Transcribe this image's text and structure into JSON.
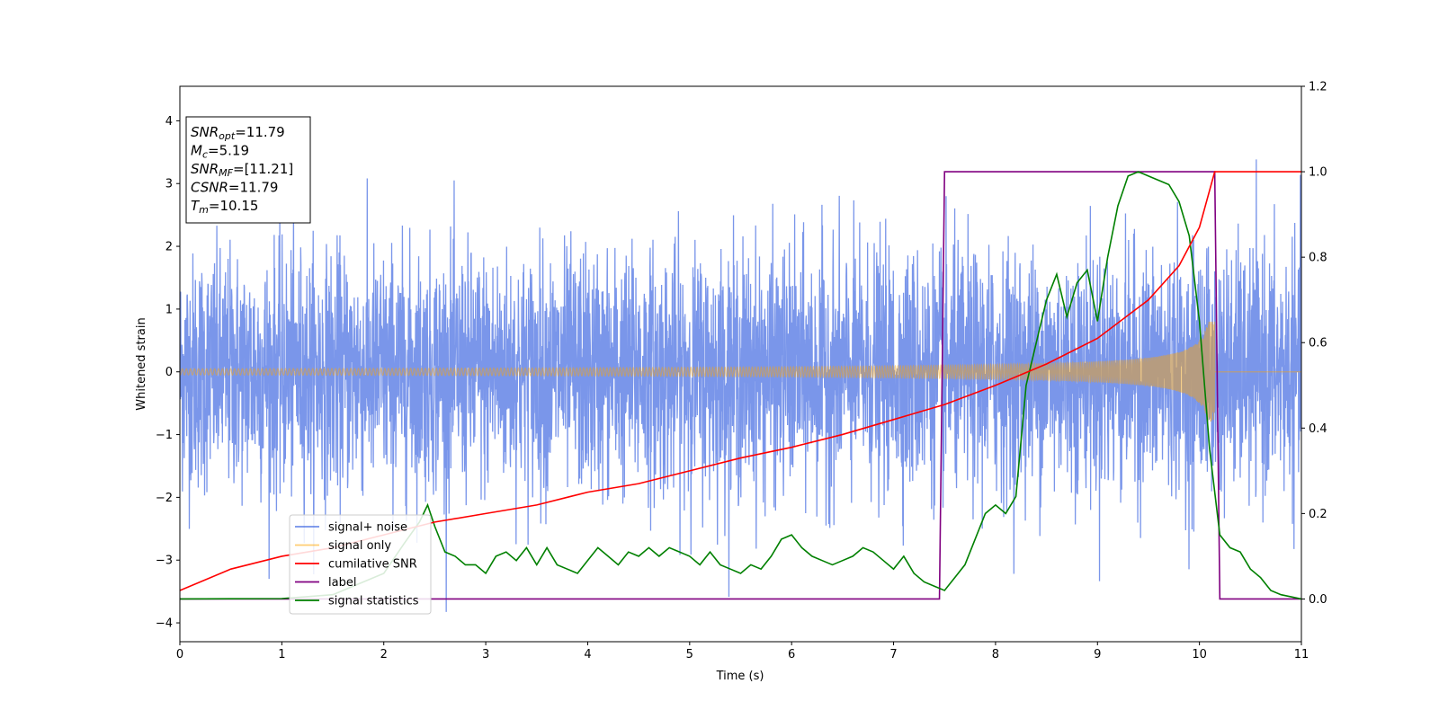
{
  "chart_data": {
    "type": "line",
    "title": "",
    "xlabel": "Time (s)",
    "ylabel": "Whitened strain",
    "y2label": "",
    "xlim": [
      0,
      11
    ],
    "ylim": [
      -4.3,
      4.55
    ],
    "y2lim": [
      -0.1,
      1.2
    ],
    "xticks": [
      "0",
      "1",
      "2",
      "3",
      "4",
      "5",
      "6",
      "7",
      "8",
      "9",
      "10",
      "11"
    ],
    "yticks": [
      "−4",
      "−3",
      "−2",
      "−1",
      "0",
      "1",
      "2",
      "3",
      "4"
    ],
    "y2ticks": [
      "0.0",
      "0.2",
      "0.4",
      "0.6",
      "0.8",
      "1.0",
      "1.2"
    ],
    "grid": false,
    "legend_position": "lower-left",
    "annotation_lines": [
      {
        "sym": "SNR",
        "sub": "opt",
        "rest": "=11.79"
      },
      {
        "sym": "M",
        "sub": "c",
        "rest": "=5.19"
      },
      {
        "sym": "SNR",
        "sub": "MF",
        "rest": "=[11.21]"
      },
      {
        "sym": "CSNR",
        "sub": "",
        "rest": "=11.79"
      },
      {
        "sym": "T",
        "sub": "m",
        "rest": "=10.15"
      }
    ],
    "series": [
      {
        "name": "signal+ noise",
        "color": "#4169e1",
        "axis": "left",
        "kind": "noise",
        "std": 0.95,
        "max": 4.2,
        "min": -3.85
      },
      {
        "name": "signal only",
        "color": "#ffa500",
        "axis": "left",
        "kind": "chirp",
        "amplitude_start": 0.05,
        "amplitude_peak": 0.8,
        "merger_time": 10.15
      },
      {
        "name": "cumilative SNR",
        "color": "#ff0000",
        "axis": "right",
        "x": [
          0,
          0.5,
          1,
          1.5,
          2,
          2.5,
          3,
          3.5,
          4,
          4.5,
          5,
          5.5,
          6,
          6.5,
          7,
          7.5,
          8,
          8.5,
          9,
          9.5,
          9.8,
          10,
          10.15,
          10.3,
          11
        ],
        "values": [
          0.02,
          0.07,
          0.1,
          0.12,
          0.15,
          0.18,
          0.2,
          0.22,
          0.25,
          0.27,
          0.3,
          0.33,
          0.355,
          0.385,
          0.42,
          0.455,
          0.5,
          0.55,
          0.61,
          0.7,
          0.78,
          0.87,
          1.0,
          1.0,
          1.0
        ]
      },
      {
        "name": "label",
        "color": "#800080",
        "axis": "right",
        "x": [
          0,
          7.45,
          7.5,
          10.15,
          10.2,
          11
        ],
        "values": [
          0,
          0,
          1,
          1,
          0,
          0
        ]
      },
      {
        "name": "signal statistics",
        "color": "#008000",
        "axis": "right",
        "x": [
          0,
          1.0,
          1.5,
          2.0,
          2.2,
          2.35,
          2.43,
          2.5,
          2.6,
          2.7,
          2.8,
          2.9,
          3.0,
          3.1,
          3.2,
          3.3,
          3.4,
          3.5,
          3.6,
          3.7,
          3.8,
          3.9,
          4.0,
          4.1,
          4.2,
          4.3,
          4.4,
          4.5,
          4.6,
          4.7,
          4.8,
          4.9,
          5.0,
          5.1,
          5.2,
          5.3,
          5.4,
          5.5,
          5.6,
          5.7,
          5.8,
          5.9,
          6.0,
          6.1,
          6.2,
          6.3,
          6.4,
          6.5,
          6.6,
          6.7,
          6.8,
          6.9,
          7.0,
          7.1,
          7.2,
          7.3,
          7.4,
          7.5,
          7.6,
          7.7,
          7.8,
          7.9,
          8.0,
          8.1,
          8.2,
          8.3,
          8.4,
          8.5,
          8.6,
          8.7,
          8.8,
          8.9,
          9.0,
          9.1,
          9.2,
          9.3,
          9.4,
          9.5,
          9.6,
          9.7,
          9.8,
          9.9,
          10.0,
          10.1,
          10.2,
          10.3,
          10.4,
          10.5,
          10.6,
          10.7,
          10.8,
          10.9,
          11.0
        ],
        "values": [
          0.0,
          0.001,
          0.01,
          0.06,
          0.13,
          0.18,
          0.22,
          0.17,
          0.11,
          0.1,
          0.08,
          0.08,
          0.06,
          0.1,
          0.11,
          0.09,
          0.12,
          0.08,
          0.12,
          0.08,
          0.07,
          0.06,
          0.09,
          0.12,
          0.1,
          0.08,
          0.11,
          0.1,
          0.12,
          0.1,
          0.12,
          0.11,
          0.1,
          0.08,
          0.11,
          0.08,
          0.07,
          0.06,
          0.08,
          0.07,
          0.1,
          0.14,
          0.15,
          0.12,
          0.1,
          0.09,
          0.08,
          0.09,
          0.1,
          0.12,
          0.11,
          0.09,
          0.07,
          0.1,
          0.06,
          0.04,
          0.03,
          0.02,
          0.05,
          0.08,
          0.14,
          0.2,
          0.22,
          0.2,
          0.24,
          0.5,
          0.6,
          0.7,
          0.76,
          0.66,
          0.74,
          0.77,
          0.65,
          0.8,
          0.92,
          0.99,
          1.0,
          0.99,
          0.98,
          0.97,
          0.93,
          0.85,
          0.65,
          0.35,
          0.15,
          0.12,
          0.11,
          0.07,
          0.05,
          0.02,
          0.01,
          0.005,
          0.0
        ]
      }
    ]
  }
}
